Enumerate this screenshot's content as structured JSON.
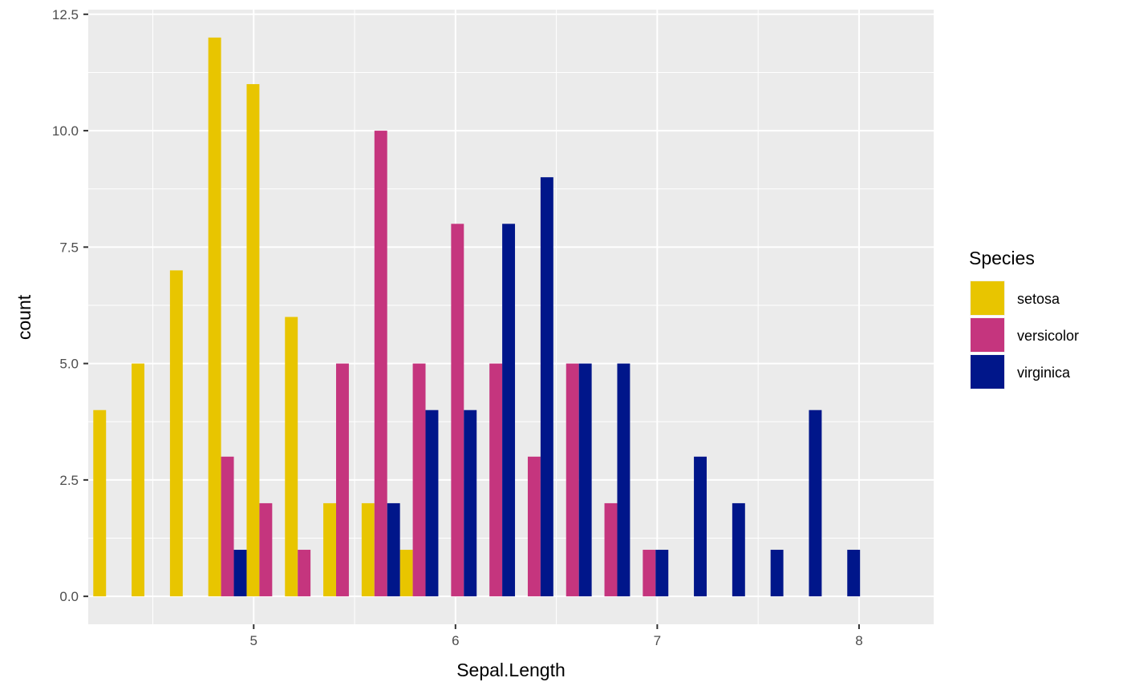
{
  "chart_data": {
    "type": "bar",
    "xlabel": "Sepal.Length",
    "ylabel": "count",
    "xlim": [
      4.18,
      8.37
    ],
    "ylim": [
      -0.6,
      12.6
    ],
    "x_ticks": [
      "5",
      "6",
      "7",
      "8"
    ],
    "y_ticks": [
      "0.0",
      "2.5",
      "5.0",
      "7.5",
      "10.0",
      "12.5"
    ],
    "grid": true,
    "legend": {
      "title": "Species",
      "position": "right"
    },
    "x": [
      4.3,
      4.49,
      4.68,
      4.87,
      5.06,
      5.25,
      5.44,
      5.63,
      5.82,
      6.01,
      6.2,
      6.39,
      6.58,
      6.77,
      6.96,
      7.15,
      7.34,
      7.53,
      7.72,
      7.91
    ],
    "series": [
      {
        "name": "setosa",
        "color": "#E8C500",
        "values": [
          4,
          5,
          7,
          12,
          11,
          6,
          2,
          2,
          1,
          0,
          0,
          0,
          0,
          0,
          0,
          0,
          0,
          0,
          0,
          0
        ]
      },
      {
        "name": "versicolor",
        "color": "#C5357E",
        "values": [
          0,
          0,
          0,
          3,
          2,
          1,
          5,
          10,
          5,
          8,
          5,
          3,
          5,
          2,
          1,
          0,
          0,
          0,
          0,
          0
        ]
      },
      {
        "name": "virginica",
        "color": "#00168A",
        "values": [
          0,
          0,
          0,
          1,
          0,
          0,
          0,
          2,
          4,
          4,
          8,
          9,
          5,
          5,
          1,
          3,
          2,
          1,
          4,
          1
        ]
      }
    ]
  }
}
